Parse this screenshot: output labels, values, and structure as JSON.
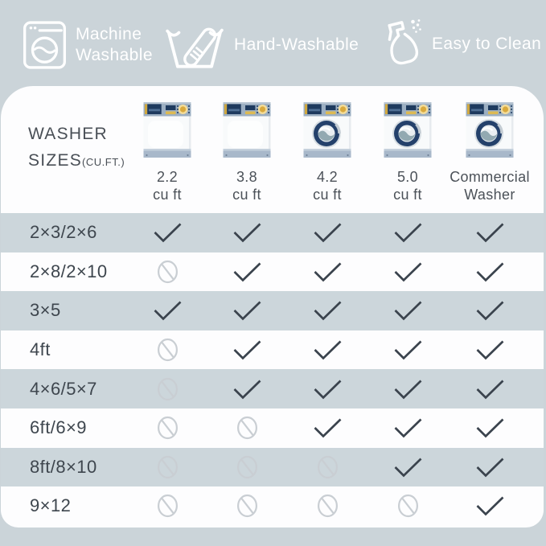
{
  "colors": {
    "background": "#cbd4d9",
    "panel": "#fdfdfe",
    "row_alt": "#ccd6db",
    "check": "#3a434d",
    "prohibited": "#c9ced3",
    "text_dark": "#3e464e",
    "washer_navy": "#1e3a5e",
    "washer_yellow": "#d9a93c",
    "washer_panel_band": "#9cafc2",
    "washer_bottom_band": "#a8b8ca"
  },
  "features": [
    {
      "label": "Machine Washable",
      "icon": "washing-machine-icon"
    },
    {
      "label": "Hand-Washable",
      "icon": "hand-wash-icon"
    },
    {
      "label": "Easy to Clean",
      "icon": "spray-bottle-icon"
    }
  ],
  "table": {
    "title_line1": "WASHER",
    "title_line2_main": "SIZES",
    "title_line2_small": "(CU.FT.)",
    "columns": [
      {
        "line1": "2.2",
        "line2": "cu ft",
        "washer_style": "closed-door"
      },
      {
        "line1": "3.8",
        "line2": "cu ft",
        "washer_style": "closed-door"
      },
      {
        "line1": "4.2",
        "line2": "cu ft",
        "washer_style": "front-load"
      },
      {
        "line1": "5.0",
        "line2": "cu ft",
        "washer_style": "front-load"
      },
      {
        "line1": "Commercial",
        "line2": "Washer",
        "washer_style": "front-load"
      }
    ],
    "rows": [
      {
        "label": "2×3/2×6",
        "values": [
          "yes",
          "yes",
          "yes",
          "yes",
          "yes"
        ]
      },
      {
        "label": "2×8/2×10",
        "values": [
          "no",
          "yes",
          "yes",
          "yes",
          "yes"
        ]
      },
      {
        "label": "3×5",
        "values": [
          "yes",
          "yes",
          "yes",
          "yes",
          "yes"
        ]
      },
      {
        "label": "4ft",
        "values": [
          "no",
          "yes",
          "yes",
          "yes",
          "yes"
        ]
      },
      {
        "label": "4×6/5×7",
        "values": [
          "no",
          "yes",
          "yes",
          "yes",
          "yes"
        ]
      },
      {
        "label": "6ft/6×9",
        "values": [
          "no",
          "no",
          "yes",
          "yes",
          "yes"
        ]
      },
      {
        "label": "8ft/8×10",
        "values": [
          "no",
          "no",
          "no",
          "yes",
          "yes"
        ]
      },
      {
        "label": "9×12",
        "values": [
          "no",
          "no",
          "no",
          "no",
          "yes"
        ]
      }
    ]
  },
  "chart_data": {
    "type": "table",
    "title": "WASHER SIZES (CU.FT.)",
    "columns": [
      "2.2 cu ft",
      "3.8 cu ft",
      "4.2 cu ft",
      "5.0 cu ft",
      "Commercial Washer"
    ],
    "row_labels": [
      "2×3/2×6",
      "2×8/2×10",
      "3×5",
      "4ft",
      "4×6/5×7",
      "6ft/6×9",
      "8ft/8×10",
      "9×12"
    ],
    "matrix": [
      [
        "yes",
        "yes",
        "yes",
        "yes",
        "yes"
      ],
      [
        "no",
        "yes",
        "yes",
        "yes",
        "yes"
      ],
      [
        "yes",
        "yes",
        "yes",
        "yes",
        "yes"
      ],
      [
        "no",
        "yes",
        "yes",
        "yes",
        "yes"
      ],
      [
        "no",
        "yes",
        "yes",
        "yes",
        "yes"
      ],
      [
        "no",
        "no",
        "yes",
        "yes",
        "yes"
      ],
      [
        "no",
        "no",
        "no",
        "yes",
        "yes"
      ],
      [
        "no",
        "no",
        "no",
        "no",
        "yes"
      ]
    ],
    "cell_symbols": {
      "yes": "checkmark",
      "no": "prohibited-circle"
    },
    "legend_position": "none",
    "grid": "alternating-row-shading"
  }
}
